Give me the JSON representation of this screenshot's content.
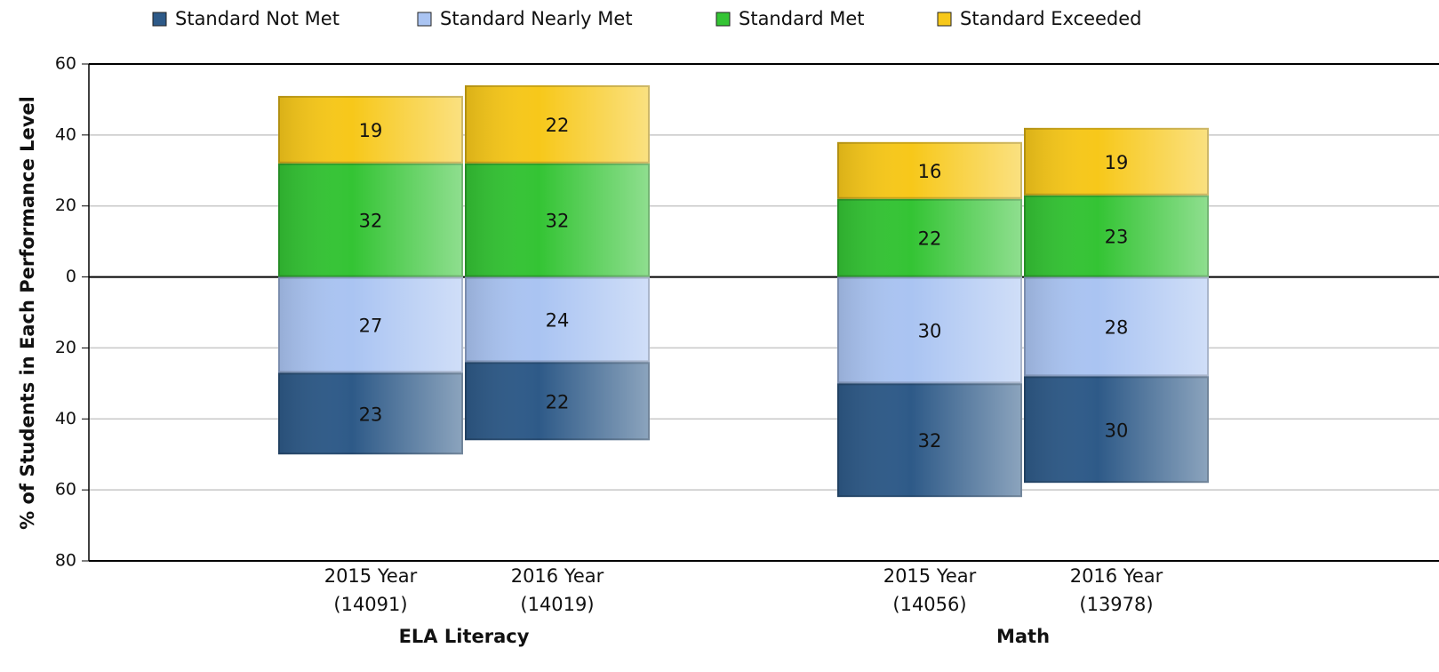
{
  "chart_data": {
    "type": "diverging-stacked-bar",
    "ylabel": "% of Students in Each Performance Level",
    "ylim": [
      -80,
      60
    ],
    "yticks": [
      {
        "value": -80,
        "label": "80"
      },
      {
        "value": -60,
        "label": "60"
      },
      {
        "value": -40,
        "label": "40"
      },
      {
        "value": -20,
        "label": "20"
      },
      0,
      20,
      40,
      60
    ],
    "grid": true,
    "legend": "top",
    "groups": [
      {
        "label": "ELA Literacy",
        "categories": [
          [
            "2015 Year",
            "(14091)"
          ],
          [
            "2016 Year",
            "(14019)"
          ]
        ]
      },
      {
        "label": "Math",
        "categories": [
          [
            "2015 Year",
            "(14056)"
          ],
          [
            "2016 Year",
            "(13978)"
          ]
        ]
      }
    ],
    "series": [
      {
        "name": "Standard Not Met",
        "color": "#2e5a88",
        "values": [
          -23,
          -22,
          -32,
          -30
        ],
        "value_labels": [
          "23",
          "22",
          "32",
          "30"
        ]
      },
      {
        "name": "Standard Nearly Met",
        "color": "#aac4f2",
        "values": [
          -27,
          -24,
          -30,
          -28
        ],
        "value_labels": [
          "27",
          "24",
          "30",
          "28"
        ]
      },
      {
        "name": "Standard Met",
        "color": "#34c434",
        "values": [
          32,
          32,
          22,
          23
        ]
      },
      {
        "name": "Standard Exceeded",
        "color": "#f7c81a",
        "values": [
          19,
          22,
          16,
          19
        ]
      }
    ]
  }
}
